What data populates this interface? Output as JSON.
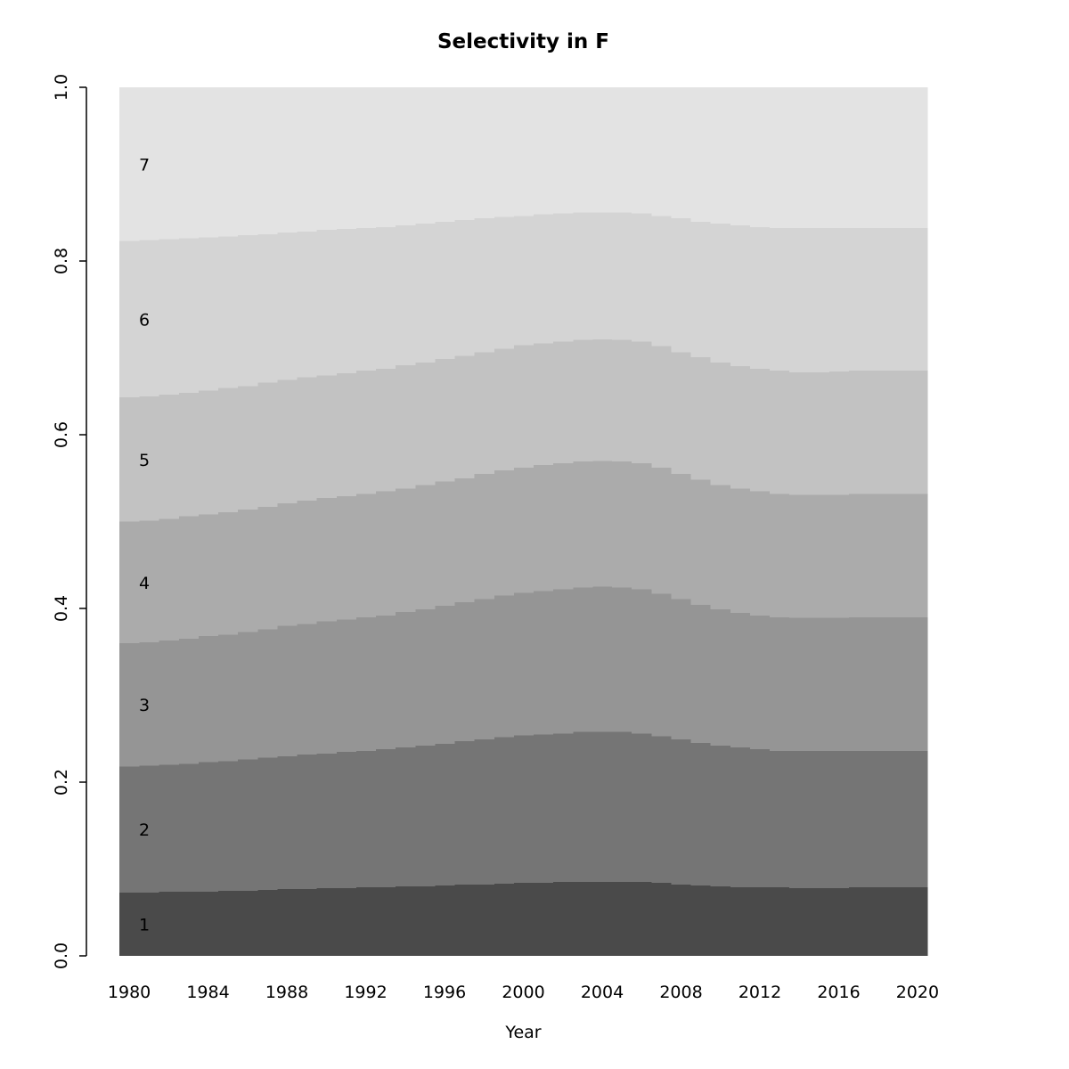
{
  "title": "Selectivity in F",
  "chart_data": {
    "type": "area",
    "stacked": true,
    "title": "Selectivity in F",
    "xlabel": "Year",
    "ylabel": "",
    "ylim": [
      0,
      1
    ],
    "grid": false,
    "legend_position": "none",
    "note": "Stacked proportion-at-age bands (1 bottom/darkest to 7 top/lightest); series values are cumulative band tops per year",
    "x": [
      1980,
      1981,
      1982,
      1983,
      1984,
      1985,
      1986,
      1987,
      1988,
      1989,
      1990,
      1991,
      1992,
      1993,
      1994,
      1995,
      1996,
      1997,
      1998,
      1999,
      2000,
      2001,
      2002,
      2003,
      2004,
      2005,
      2006,
      2007,
      2008,
      2009,
      2010,
      2011,
      2012,
      2013,
      2014,
      2015,
      2016,
      2017,
      2018,
      2019,
      2020
    ],
    "x_ticks": [
      1980,
      1984,
      1988,
      1992,
      1996,
      2000,
      2004,
      2008,
      2012,
      2016,
      2020
    ],
    "y_ticks": [
      "0.0",
      "0.2",
      "0.4",
      "0.6",
      "0.8",
      "1.0"
    ],
    "band_labels": [
      "1",
      "2",
      "3",
      "4",
      "5",
      "6",
      "7"
    ],
    "series": [
      {
        "name": "1",
        "color": "#4a4a4a",
        "cumulative_top": [
          0.073,
          0.073,
          0.074,
          0.074,
          0.074,
          0.075,
          0.075,
          0.076,
          0.077,
          0.077,
          0.078,
          0.078,
          0.079,
          0.079,
          0.08,
          0.08,
          0.081,
          0.082,
          0.082,
          0.083,
          0.084,
          0.084,
          0.085,
          0.085,
          0.085,
          0.085,
          0.085,
          0.084,
          0.082,
          0.081,
          0.08,
          0.079,
          0.079,
          0.079,
          0.078,
          0.078,
          0.078,
          0.079,
          0.079,
          0.079,
          0.079
        ]
      },
      {
        "name": "2",
        "color": "#757575",
        "cumulative_top": [
          0.218,
          0.219,
          0.22,
          0.221,
          0.223,
          0.224,
          0.226,
          0.228,
          0.23,
          0.232,
          0.233,
          0.235,
          0.236,
          0.238,
          0.24,
          0.242,
          0.244,
          0.247,
          0.249,
          0.252,
          0.254,
          0.255,
          0.256,
          0.258,
          0.258,
          0.258,
          0.256,
          0.253,
          0.249,
          0.245,
          0.242,
          0.24,
          0.238,
          0.236,
          0.236,
          0.236,
          0.236,
          0.236,
          0.236,
          0.236,
          0.236
        ]
      },
      {
        "name": "3",
        "color": "#959595",
        "cumulative_top": [
          0.36,
          0.361,
          0.363,
          0.365,
          0.368,
          0.37,
          0.373,
          0.376,
          0.38,
          0.382,
          0.385,
          0.387,
          0.39,
          0.392,
          0.396,
          0.399,
          0.403,
          0.407,
          0.411,
          0.415,
          0.418,
          0.42,
          0.422,
          0.424,
          0.425,
          0.424,
          0.422,
          0.417,
          0.411,
          0.404,
          0.399,
          0.395,
          0.392,
          0.39,
          0.389,
          0.389,
          0.389,
          0.39,
          0.39,
          0.39,
          0.39
        ]
      },
      {
        "name": "4",
        "color": "#ababab",
        "cumulative_top": [
          0.5,
          0.501,
          0.503,
          0.506,
          0.508,
          0.511,
          0.514,
          0.517,
          0.521,
          0.524,
          0.527,
          0.529,
          0.532,
          0.535,
          0.538,
          0.542,
          0.546,
          0.55,
          0.555,
          0.559,
          0.562,
          0.565,
          0.567,
          0.569,
          0.57,
          0.569,
          0.567,
          0.562,
          0.555,
          0.548,
          0.542,
          0.538,
          0.535,
          0.532,
          0.531,
          0.531,
          0.531,
          0.532,
          0.532,
          0.532,
          0.532
        ]
      },
      {
        "name": "5",
        "color": "#c2c2c2",
        "cumulative_top": [
          0.643,
          0.644,
          0.646,
          0.648,
          0.651,
          0.654,
          0.656,
          0.66,
          0.663,
          0.666,
          0.668,
          0.671,
          0.674,
          0.676,
          0.68,
          0.683,
          0.687,
          0.691,
          0.695,
          0.699,
          0.703,
          0.705,
          0.707,
          0.709,
          0.71,
          0.709,
          0.707,
          0.702,
          0.695,
          0.689,
          0.683,
          0.679,
          0.676,
          0.674,
          0.672,
          0.672,
          0.673,
          0.674,
          0.674,
          0.674,
          0.674
        ]
      },
      {
        "name": "6",
        "color": "#d4d4d4",
        "cumulative_top": [
          0.823,
          0.824,
          0.825,
          0.826,
          0.827,
          0.828,
          0.83,
          0.831,
          0.833,
          0.834,
          0.836,
          0.837,
          0.838,
          0.839,
          0.841,
          0.843,
          0.845,
          0.847,
          0.849,
          0.851,
          0.852,
          0.854,
          0.855,
          0.856,
          0.856,
          0.856,
          0.855,
          0.852,
          0.849,
          0.845,
          0.843,
          0.841,
          0.839,
          0.838,
          0.838,
          0.838,
          0.838,
          0.838,
          0.838,
          0.838,
          0.838
        ]
      },
      {
        "name": "7",
        "color": "#e3e3e3",
        "cumulative_top": [
          1.0,
          1.0,
          1.0,
          1.0,
          1.0,
          1.0,
          1.0,
          1.0,
          1.0,
          1.0,
          1.0,
          1.0,
          1.0,
          1.0,
          1.0,
          1.0,
          1.0,
          1.0,
          1.0,
          1.0,
          1.0,
          1.0,
          1.0,
          1.0,
          1.0,
          1.0,
          1.0,
          1.0,
          1.0,
          1.0,
          1.0,
          1.0,
          1.0,
          1.0,
          1.0,
          1.0,
          1.0,
          1.0,
          1.0,
          1.0,
          1.0
        ]
      }
    ],
    "axis_color": "#000000",
    "label_color": "#000000"
  }
}
